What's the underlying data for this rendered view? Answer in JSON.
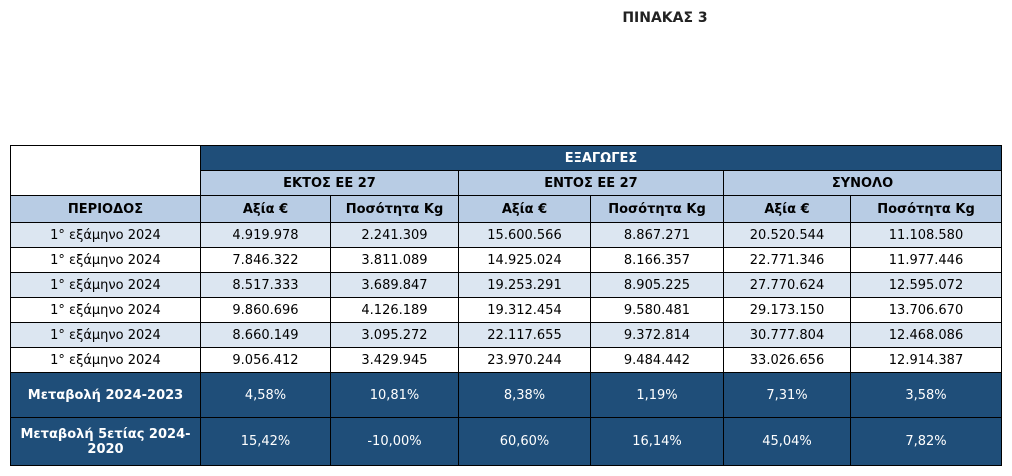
{
  "title": "ΠΙΝΑΚΑΣ 3",
  "table": {
    "group_header": "ΕΞΑΓΩΓΕΣ",
    "subgroups": [
      "ΕΚΤΟΣ ΕΕ 27",
      "ΕΝΤΟΣ ΕΕ 27",
      "ΣΥΝΟΛΟ"
    ],
    "columns": [
      "ΠΕΡΙΟΔΟΣ",
      "Αξία €",
      "Ποσότητα Kg",
      "Αξία €",
      "Ποσότητα Kg",
      "Αξία €",
      "Ποσότητα Kg"
    ],
    "rows": [
      [
        "1° εξάμηνο 2024",
        "4.919.978",
        "2.241.309",
        "15.600.566",
        "8.867.271",
        "20.520.544",
        "11.108.580"
      ],
      [
        "1° εξάμηνο 2024",
        "7.846.322",
        "3.811.089",
        "14.925.024",
        "8.166.357",
        "22.771.346",
        "11.977.446"
      ],
      [
        "1° εξάμηνο 2024",
        "8.517.333",
        "3.689.847",
        "19.253.291",
        "8.905.225",
        "27.770.624",
        "12.595.072"
      ],
      [
        "1° εξάμηνο 2024",
        "9.860.696",
        "4.126.189",
        "19.312.454",
        "9.580.481",
        "29.173.150",
        "13.706.670"
      ],
      [
        "1° εξάμηνο 2024",
        "8.660.149",
        "3.095.272",
        "22.117.655",
        "9.372.814",
        "30.777.804",
        "12.468.086"
      ],
      [
        "1° εξάμηνο 2024",
        "9.056.412",
        "3.429.945",
        "23.970.244",
        "9.484.442",
        "33.026.656",
        "12.914.387"
      ]
    ],
    "summary_rows": [
      [
        "Μεταβολή 2024-2023",
        "4,58%",
        "10,81%",
        "8,38%",
        "1,19%",
        "7,31%",
        "3,58%"
      ],
      [
        "Μεταβολή 5ετίας 2024-2020",
        "15,42%",
        "-10,00%",
        "60,60%",
        "16,14%",
        "45,04%",
        "7,82%"
      ]
    ]
  }
}
